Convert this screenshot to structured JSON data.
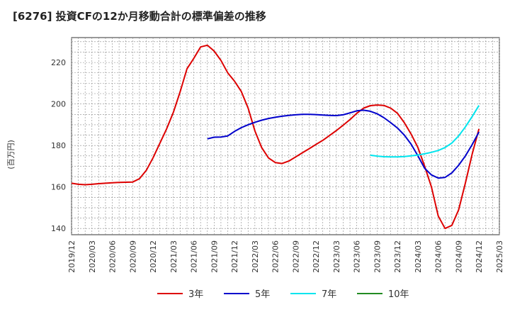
{
  "title": "[6276]  投資CFの12か月移動合計の標準偏差の推移",
  "chart_data": {
    "type": "line",
    "title": "[6276]  投資CFの12か月移動合計の標準偏差の推移",
    "ylabel": "(百万円)",
    "xlabel": "",
    "ylim": [
      137,
      232
    ],
    "y_ticks": [
      140,
      160,
      180,
      200,
      220
    ],
    "x_ticks": [
      "2019/12",
      "2020/03",
      "2020/06",
      "2020/09",
      "2020/12",
      "2021/03",
      "2021/06",
      "2021/09",
      "2021/12",
      "2022/03",
      "2022/06",
      "2022/09",
      "2022/12",
      "2023/03",
      "2023/06",
      "2023/09",
      "2023/12",
      "2024/03",
      "2024/06",
      "2024/09",
      "2024/12",
      "2025/03"
    ],
    "grid": true,
    "legend_position": "bottom",
    "series": [
      {
        "name": "3年",
        "color": "#dd0000",
        "points": [
          [
            "2019/12",
            161.8
          ],
          [
            "2020/01",
            161.3
          ],
          [
            "2020/02",
            161.1
          ],
          [
            "2020/03",
            161.3
          ],
          [
            "2020/04",
            161.6
          ],
          [
            "2020/05",
            161.8
          ],
          [
            "2020/06",
            162.0
          ],
          [
            "2020/07",
            162.2
          ],
          [
            "2020/08",
            162.3
          ],
          [
            "2020/09",
            162.4
          ],
          [
            "2020/10",
            164.0
          ],
          [
            "2020/11",
            168.0
          ],
          [
            "2020/12",
            174.0
          ],
          [
            "2021/01",
            181.0
          ],
          [
            "2021/02",
            188.0
          ],
          [
            "2021/03",
            196.0
          ],
          [
            "2021/04",
            206.0
          ],
          [
            "2021/05",
            217.0
          ],
          [
            "2021/06",
            222.0
          ],
          [
            "2021/07",
            227.5
          ],
          [
            "2021/08",
            228.3
          ],
          [
            "2021/09",
            225.5
          ],
          [
            "2021/10",
            221.0
          ],
          [
            "2021/11",
            215.0
          ],
          [
            "2021/12",
            211.0
          ],
          [
            "2022/01",
            206.0
          ],
          [
            "2022/02",
            198.0
          ],
          [
            "2022/03",
            187.0
          ],
          [
            "2022/04",
            179.0
          ],
          [
            "2022/05",
            174.0
          ],
          [
            "2022/06",
            171.8
          ],
          [
            "2022/07",
            171.3
          ],
          [
            "2022/08",
            172.5
          ],
          [
            "2022/09",
            174.5
          ],
          [
            "2022/10",
            176.5
          ],
          [
            "2022/11",
            178.5
          ],
          [
            "2022/12",
            180.5
          ],
          [
            "2023/01",
            182.5
          ],
          [
            "2023/02",
            184.8
          ],
          [
            "2023/03",
            187.2
          ],
          [
            "2023/04",
            189.8
          ],
          [
            "2023/05",
            192.5
          ],
          [
            "2023/06",
            195.5
          ],
          [
            "2023/07",
            198.0
          ],
          [
            "2023/08",
            199.2
          ],
          [
            "2023/09",
            199.5
          ],
          [
            "2023/10",
            199.3
          ],
          [
            "2023/11",
            198.0
          ],
          [
            "2023/12",
            195.5
          ],
          [
            "2024/01",
            191.0
          ],
          [
            "2024/02",
            185.5
          ],
          [
            "2024/03",
            179.0
          ],
          [
            "2024/04",
            170.0
          ],
          [
            "2024/05",
            160.0
          ],
          [
            "2024/06",
            146.0
          ],
          [
            "2024/07",
            140.0
          ],
          [
            "2024/08",
            141.5
          ],
          [
            "2024/09",
            149.0
          ],
          [
            "2024/10",
            162.0
          ],
          [
            "2024/11",
            176.0
          ],
          [
            "2024/12",
            188.0
          ]
        ]
      },
      {
        "name": "5年",
        "color": "#0000cc",
        "points": [
          [
            "2021/08",
            183.2
          ],
          [
            "2021/09",
            184.0
          ],
          [
            "2021/10",
            184.1
          ],
          [
            "2021/11",
            184.6
          ],
          [
            "2021/12",
            186.8
          ],
          [
            "2022/01",
            188.6
          ],
          [
            "2022/02",
            190.0
          ],
          [
            "2022/03",
            191.2
          ],
          [
            "2022/04",
            192.2
          ],
          [
            "2022/05",
            193.0
          ],
          [
            "2022/06",
            193.6
          ],
          [
            "2022/07",
            194.1
          ],
          [
            "2022/08",
            194.5
          ],
          [
            "2022/09",
            194.8
          ],
          [
            "2022/10",
            195.0
          ],
          [
            "2022/11",
            195.0
          ],
          [
            "2022/12",
            194.9
          ],
          [
            "2023/01",
            194.7
          ],
          [
            "2023/02",
            194.5
          ],
          [
            "2023/03",
            194.4
          ],
          [
            "2023/04",
            194.8
          ],
          [
            "2023/05",
            195.7
          ],
          [
            "2023/06",
            196.7
          ],
          [
            "2023/07",
            197.0
          ],
          [
            "2023/08",
            196.5
          ],
          [
            "2023/09",
            195.3
          ],
          [
            "2023/10",
            193.4
          ],
          [
            "2023/11",
            191.0
          ],
          [
            "2023/12",
            188.4
          ],
          [
            "2024/01",
            185.0
          ],
          [
            "2024/02",
            180.6
          ],
          [
            "2024/03",
            175.0
          ],
          [
            "2024/04",
            169.0
          ],
          [
            "2024/05",
            165.8
          ],
          [
            "2024/06",
            164.3
          ],
          [
            "2024/07",
            164.6
          ],
          [
            "2024/08",
            166.8
          ],
          [
            "2024/09",
            170.5
          ],
          [
            "2024/10",
            175.0
          ],
          [
            "2024/11",
            180.5
          ],
          [
            "2024/12",
            186.5
          ]
        ]
      },
      {
        "name": "7年",
        "color": "#00e5ee",
        "points": [
          [
            "2023/08",
            175.3
          ],
          [
            "2023/09",
            174.9
          ],
          [
            "2023/10",
            174.6
          ],
          [
            "2023/11",
            174.5
          ],
          [
            "2023/12",
            174.5
          ],
          [
            "2024/01",
            174.7
          ],
          [
            "2024/02",
            175.0
          ],
          [
            "2024/03",
            175.4
          ],
          [
            "2024/04",
            176.0
          ],
          [
            "2024/05",
            176.7
          ],
          [
            "2024/06",
            177.6
          ],
          [
            "2024/07",
            179.0
          ],
          [
            "2024/08",
            181.2
          ],
          [
            "2024/09",
            184.6
          ],
          [
            "2024/10",
            189.0
          ],
          [
            "2024/11",
            194.0
          ],
          [
            "2024/12",
            199.3
          ]
        ]
      },
      {
        "name": "10年",
        "color": "#228b22",
        "points": []
      }
    ]
  }
}
